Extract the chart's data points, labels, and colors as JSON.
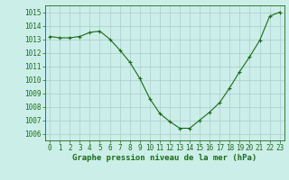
{
  "x": [
    0,
    1,
    2,
    3,
    4,
    5,
    6,
    7,
    8,
    9,
    10,
    11,
    12,
    13,
    14,
    15,
    16,
    17,
    18,
    19,
    20,
    21,
    22,
    23
  ],
  "y": [
    1013.2,
    1013.1,
    1013.1,
    1013.2,
    1013.5,
    1013.6,
    1013.0,
    1012.2,
    1011.3,
    1010.1,
    1008.6,
    1007.5,
    1006.9,
    1006.4,
    1006.4,
    1007.0,
    1007.6,
    1008.3,
    1009.4,
    1010.6,
    1011.7,
    1012.9,
    1014.7,
    1015.0
  ],
  "line_color": "#1a6b1a",
  "marker_color": "#1a6b1a",
  "bg_color": "#cceee8",
  "grid_color": "#aacccc",
  "xlabel": "Graphe pression niveau de la mer (hPa)",
  "xlabel_color": "#1a6b1a",
  "tick_color": "#1a6b1a",
  "ylim": [
    1005.5,
    1015.5
  ],
  "xlim": [
    -0.5,
    23.5
  ],
  "yticks": [
    1006,
    1007,
    1008,
    1009,
    1010,
    1011,
    1012,
    1013,
    1014,
    1015
  ],
  "xticks": [
    0,
    1,
    2,
    3,
    4,
    5,
    6,
    7,
    8,
    9,
    10,
    11,
    12,
    13,
    14,
    15,
    16,
    17,
    18,
    19,
    20,
    21,
    22,
    23
  ],
  "tick_fontsize": 5.5,
  "xlabel_fontsize": 6.5
}
